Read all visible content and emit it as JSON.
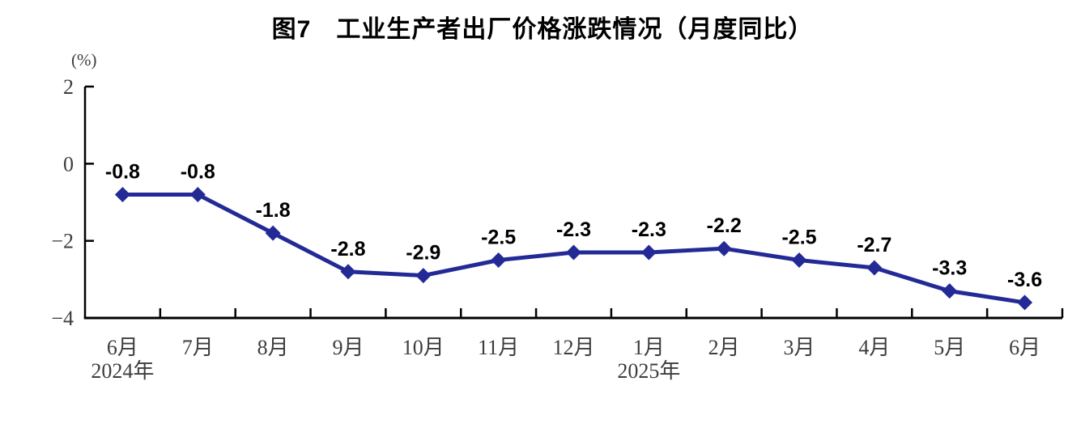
{
  "chart_data": {
    "type": "line",
    "title": "图7　工业生产者出厂价格涨跌情况（月度同比）",
    "unit_label": "(%)",
    "categories": [
      "6月",
      "7月",
      "8月",
      "9月",
      "10月",
      "11月",
      "12月",
      "1月",
      "2月",
      "3月",
      "4月",
      "5月",
      "6月"
    ],
    "year_annotations": [
      {
        "index": 0,
        "label": "2024年"
      },
      {
        "index": 7,
        "label": "2025年"
      }
    ],
    "values": [
      -0.8,
      -0.8,
      -1.8,
      -2.8,
      -2.9,
      -2.5,
      -2.3,
      -2.3,
      -2.2,
      -2.5,
      -2.7,
      -3.3,
      -3.6
    ],
    "data_labels": [
      "-0.8",
      "-0.8",
      "-1.8",
      "-2.8",
      "-2.9",
      "-2.5",
      "-2.3",
      "-2.3",
      "-2.2",
      "-2.5",
      "-2.7",
      "-3.3",
      "-3.6"
    ],
    "ylim": [
      -4,
      2
    ],
    "yticks": [
      {
        "value": 2,
        "label": "2"
      },
      {
        "value": 0,
        "label": "0"
      },
      {
        "value": -2,
        "label": "−2"
      },
      {
        "value": -4,
        "label": "−4"
      }
    ],
    "grid": false,
    "legend_position": "none",
    "marker": "diamond",
    "colors": {
      "series": "#232A96",
      "axis": "#000000",
      "tick_label": "#3d3d3d",
      "data_label": "#000000",
      "background": "#ffffff"
    }
  }
}
